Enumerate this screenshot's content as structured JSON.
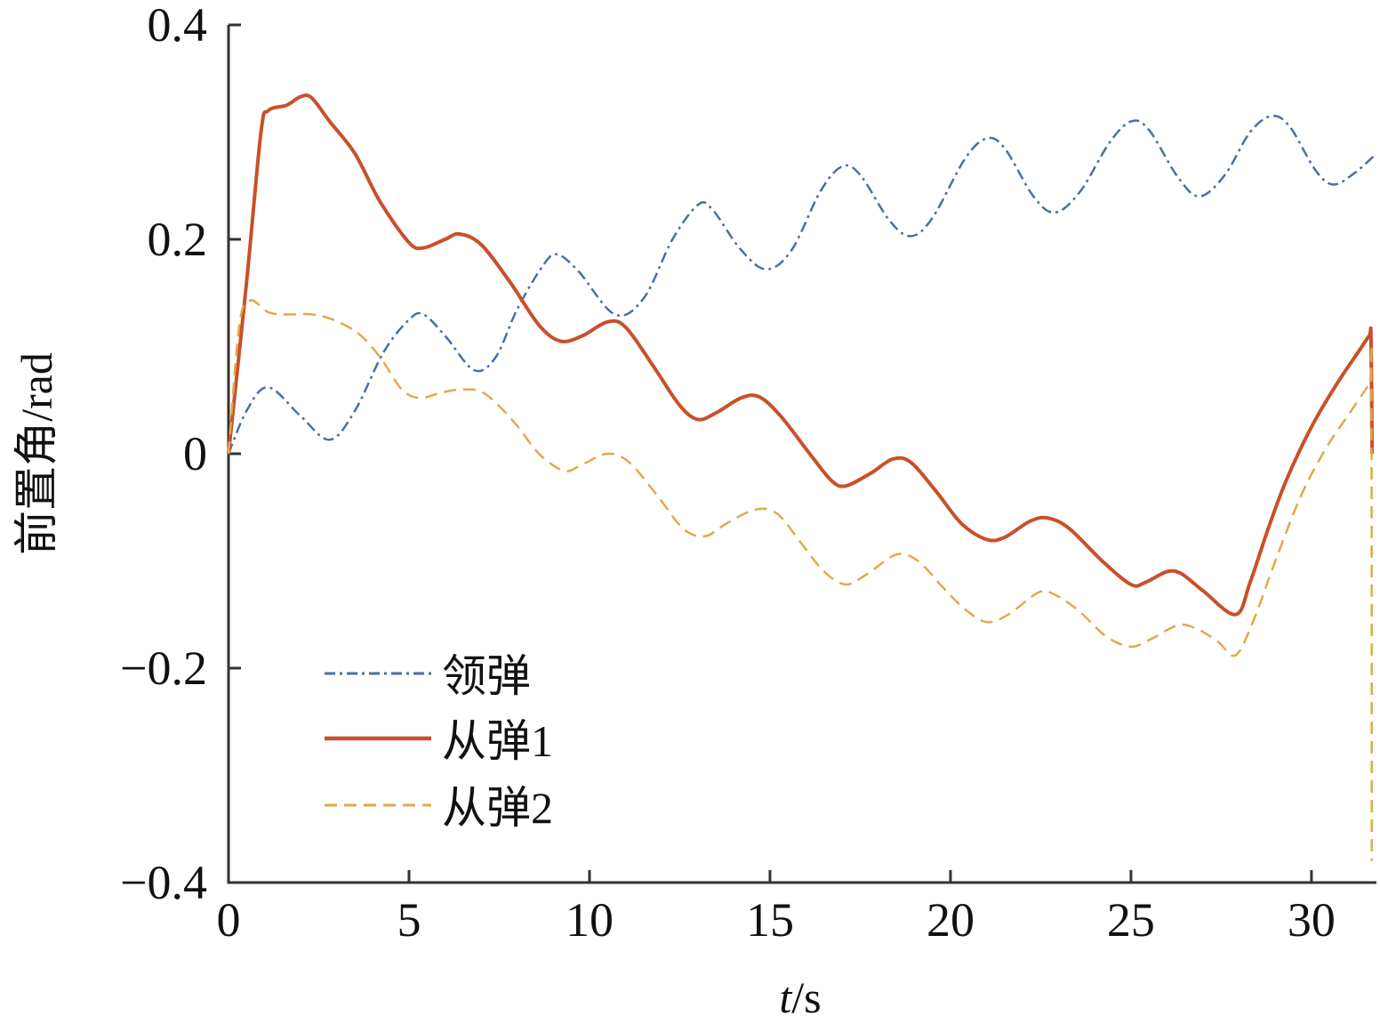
{
  "chart_data": {
    "type": "line",
    "xlabel_italic": "t",
    "xlabel_rest": "/s",
    "ylabel": "前置角/rad",
    "xlim": [
      0,
      31.8
    ],
    "ylim": [
      -0.4,
      0.4
    ],
    "x_ticks": [
      0,
      5,
      10,
      15,
      20,
      25,
      30
    ],
    "x_tick_labels": [
      "0",
      "5",
      "10",
      "15",
      "20",
      "25",
      "30"
    ],
    "y_ticks": [
      0.4,
      0.2,
      0,
      -0.2,
      -0.4
    ],
    "y_tick_labels": [
      "0.4",
      "0.2",
      "0",
      "−0.2",
      "−0.4"
    ],
    "legend_position": "bottom-left",
    "series": [
      {
        "name": "领弹",
        "color": "#4a6fa5",
        "dash": "dashdot",
        "points": [
          [
            0,
            0
          ],
          [
            0.5,
            0.04
          ],
          [
            1.1,
            0.062
          ],
          [
            2,
            0.035
          ],
          [
            2.8,
            0.013
          ],
          [
            3.5,
            0.04
          ],
          [
            4.3,
            0.095
          ],
          [
            5,
            0.125
          ],
          [
            5.4,
            0.13
          ],
          [
            6,
            0.11
          ],
          [
            6.8,
            0.078
          ],
          [
            7.4,
            0.09
          ],
          [
            8,
            0.135
          ],
          [
            8.7,
            0.175
          ],
          [
            9.1,
            0.186
          ],
          [
            9.7,
            0.17
          ],
          [
            10.7,
            0.13
          ],
          [
            11.5,
            0.145
          ],
          [
            12.3,
            0.2
          ],
          [
            13,
            0.232
          ],
          [
            13.4,
            0.228
          ],
          [
            14.2,
            0.19
          ],
          [
            14.9,
            0.172
          ],
          [
            15.6,
            0.19
          ],
          [
            16.4,
            0.245
          ],
          [
            17,
            0.268
          ],
          [
            17.5,
            0.26
          ],
          [
            18.3,
            0.218
          ],
          [
            18.9,
            0.203
          ],
          [
            19.5,
            0.22
          ],
          [
            20.4,
            0.275
          ],
          [
            21,
            0.294
          ],
          [
            21.5,
            0.285
          ],
          [
            22.3,
            0.24
          ],
          [
            22.9,
            0.225
          ],
          [
            23.6,
            0.245
          ],
          [
            24.4,
            0.29
          ],
          [
            25,
            0.31
          ],
          [
            25.5,
            0.302
          ],
          [
            26.3,
            0.258
          ],
          [
            26.9,
            0.24
          ],
          [
            27.6,
            0.26
          ],
          [
            28.3,
            0.3
          ],
          [
            28.9,
            0.315
          ],
          [
            29.4,
            0.305
          ],
          [
            30.1,
            0.265
          ],
          [
            30.6,
            0.251
          ],
          [
            31.2,
            0.262
          ],
          [
            31.8,
            0.28
          ]
        ]
      },
      {
        "name": "从弹1",
        "color": "#c8502a",
        "dash": "solid",
        "points": [
          [
            0,
            0
          ],
          [
            0.5,
            0.16
          ],
          [
            0.9,
            0.3
          ],
          [
            1.1,
            0.32
          ],
          [
            1.6,
            0.325
          ],
          [
            2,
            0.333
          ],
          [
            2.3,
            0.332
          ],
          [
            2.8,
            0.31
          ],
          [
            3.5,
            0.28
          ],
          [
            4.2,
            0.235
          ],
          [
            5,
            0.197
          ],
          [
            5.4,
            0.192
          ],
          [
            6,
            0.2
          ],
          [
            6.4,
            0.205
          ],
          [
            7,
            0.195
          ],
          [
            7.8,
            0.16
          ],
          [
            8.6,
            0.12
          ],
          [
            9.2,
            0.105
          ],
          [
            9.8,
            0.11
          ],
          [
            10.5,
            0.123
          ],
          [
            11,
            0.118
          ],
          [
            11.8,
            0.08
          ],
          [
            12.5,
            0.045
          ],
          [
            13,
            0.032
          ],
          [
            13.5,
            0.038
          ],
          [
            14.2,
            0.052
          ],
          [
            14.7,
            0.053
          ],
          [
            15.3,
            0.035
          ],
          [
            16.1,
            0
          ],
          [
            16.7,
            -0.025
          ],
          [
            17.1,
            -0.03
          ],
          [
            17.8,
            -0.018
          ],
          [
            18.4,
            -0.005
          ],
          [
            18.9,
            -0.008
          ],
          [
            19.6,
            -0.035
          ],
          [
            20.3,
            -0.065
          ],
          [
            21,
            -0.08
          ],
          [
            21.5,
            -0.078
          ],
          [
            22.2,
            -0.063
          ],
          [
            22.7,
            -0.06
          ],
          [
            23.3,
            -0.07
          ],
          [
            24.2,
            -0.1
          ],
          [
            25,
            -0.122
          ],
          [
            25.4,
            -0.12
          ],
          [
            26,
            -0.11
          ],
          [
            26.4,
            -0.112
          ],
          [
            27,
            -0.128
          ],
          [
            27.9,
            -0.15
          ],
          [
            28.3,
            -0.12
          ],
          [
            28.8,
            -0.07
          ],
          [
            29.3,
            -0.025
          ],
          [
            30,
            0.025
          ],
          [
            30.7,
            0.065
          ],
          [
            31.3,
            0.095
          ],
          [
            31.6,
            0.11
          ],
          [
            31.65,
            0.108
          ],
          [
            31.68,
            0
          ]
        ]
      },
      {
        "name": "从弹2",
        "color": "#e0a94a",
        "dash": "dashed",
        "points": [
          [
            0,
            0
          ],
          [
            0.3,
            0.12
          ],
          [
            0.6,
            0.143
          ],
          [
            1.1,
            0.132
          ],
          [
            1.6,
            0.13
          ],
          [
            2.3,
            0.13
          ],
          [
            2.9,
            0.125
          ],
          [
            3.6,
            0.112
          ],
          [
            4.2,
            0.09
          ],
          [
            4.8,
            0.06
          ],
          [
            5.3,
            0.052
          ],
          [
            5.9,
            0.057
          ],
          [
            6.5,
            0.06
          ],
          [
            7.1,
            0.056
          ],
          [
            7.9,
            0.03
          ],
          [
            8.6,
            0
          ],
          [
            9.3,
            -0.016
          ],
          [
            9.8,
            -0.01
          ],
          [
            10.5,
            0
          ],
          [
            11.1,
            -0.008
          ],
          [
            11.9,
            -0.04
          ],
          [
            12.6,
            -0.07
          ],
          [
            13.2,
            -0.077
          ],
          [
            13.8,
            -0.065
          ],
          [
            14.6,
            -0.052
          ],
          [
            15.2,
            -0.056
          ],
          [
            15.9,
            -0.085
          ],
          [
            16.5,
            -0.11
          ],
          [
            17.1,
            -0.122
          ],
          [
            17.7,
            -0.112
          ],
          [
            18.5,
            -0.094
          ],
          [
            19.1,
            -0.1
          ],
          [
            19.8,
            -0.125
          ],
          [
            20.4,
            -0.145
          ],
          [
            21,
            -0.157
          ],
          [
            21.6,
            -0.15
          ],
          [
            22.4,
            -0.13
          ],
          [
            22.8,
            -0.13
          ],
          [
            23.5,
            -0.145
          ],
          [
            24.3,
            -0.17
          ],
          [
            25,
            -0.18
          ],
          [
            25.6,
            -0.172
          ],
          [
            26.3,
            -0.16
          ],
          [
            26.8,
            -0.163
          ],
          [
            27.4,
            -0.175
          ],
          [
            27.9,
            -0.188
          ],
          [
            28.4,
            -0.155
          ],
          [
            29,
            -0.1
          ],
          [
            29.7,
            -0.04
          ],
          [
            30.4,
            0.005
          ],
          [
            31.1,
            0.04
          ],
          [
            31.6,
            0.065
          ],
          [
            31.66,
            0.068
          ],
          [
            31.67,
            -0.38
          ]
        ]
      }
    ]
  }
}
